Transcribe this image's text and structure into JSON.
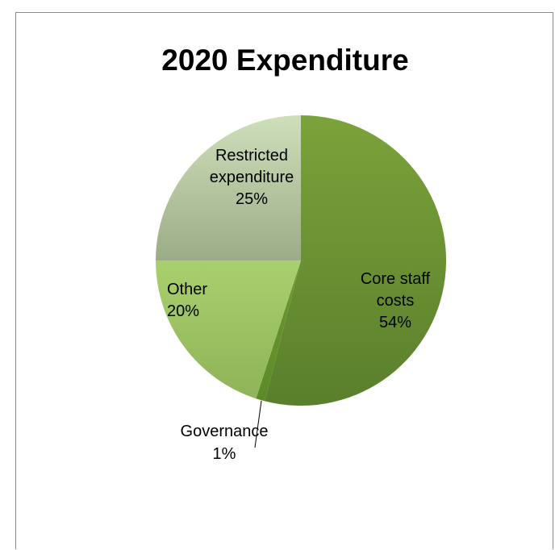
{
  "chart_data": {
    "type": "pie",
    "title": "2020 Expenditure",
    "slices": [
      {
        "label_lines": [
          "Core staff",
          "costs",
          "54%"
        ],
        "value": 54,
        "color": "#6e9434"
      },
      {
        "label_lines": [
          "Governance",
          "1%"
        ],
        "value": 1,
        "color": "#5f8c2a"
      },
      {
        "label_lines": [
          "Other",
          "20%"
        ],
        "value": 20,
        "color": "#b5d480"
      },
      {
        "label_lines": [
          "Restricted",
          "expenditure",
          "25%"
        ],
        "value": 25,
        "color": "#b8c9a2"
      }
    ],
    "start": "12 o'clock",
    "direction": "clockwise"
  }
}
